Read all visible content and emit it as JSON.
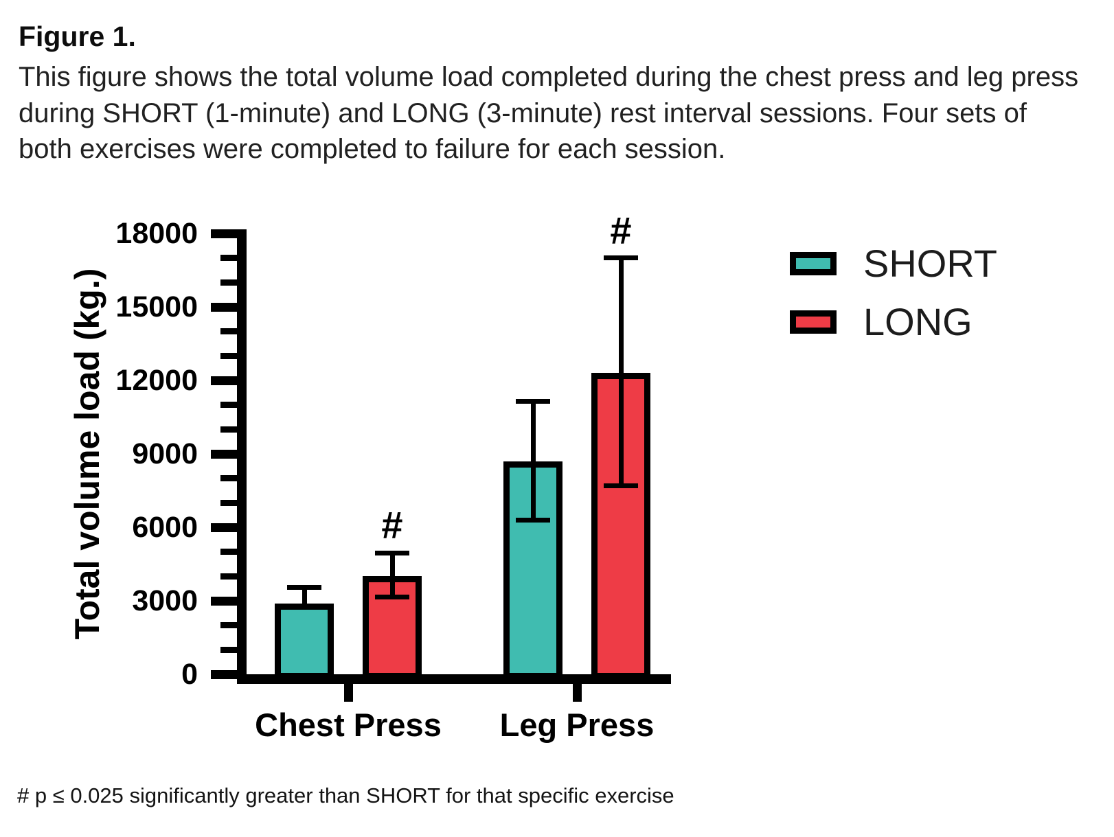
{
  "figure": {
    "label": "Figure 1.",
    "caption": "This figure shows the total volume load completed during the chest press and leg press during SHORT (1-minute) and LONG (3-minute) rest interval sessions. Four sets of both exercises were completed to failure for each session."
  },
  "footnote": "# p ≤ 0.025 significantly greater than SHORT for that specific exercise",
  "colors": {
    "short": "#40bcb0",
    "long": "#ee3c46",
    "axis": "#000000",
    "background": "#ffffff"
  },
  "chart_data": {
    "type": "bar",
    "title": "",
    "xlabel": "",
    "ylabel": "Total volume load (kg.)",
    "ylim": [
      0,
      18000
    ],
    "yticks": [
      0,
      3000,
      6000,
      9000,
      12000,
      15000,
      18000
    ],
    "minor_tick_interval": 1000,
    "grid": false,
    "legend_position": "upper right",
    "categories": [
      "Chest Press",
      "Leg Press"
    ],
    "series": [
      {
        "name": "SHORT",
        "color": "#40bcb0",
        "values": [
          2900,
          8700
        ],
        "error_upper": [
          3550,
          11150
        ],
        "error_lower": [
          null,
          6300
        ],
        "significance": [
          null,
          null
        ]
      },
      {
        "name": "LONG",
        "color": "#ee3c46",
        "values": [
          4000,
          12300
        ],
        "error_upper": [
          4950,
          17000
        ],
        "error_lower": [
          3150,
          7700
        ],
        "significance": [
          "#",
          "#"
        ]
      }
    ]
  }
}
